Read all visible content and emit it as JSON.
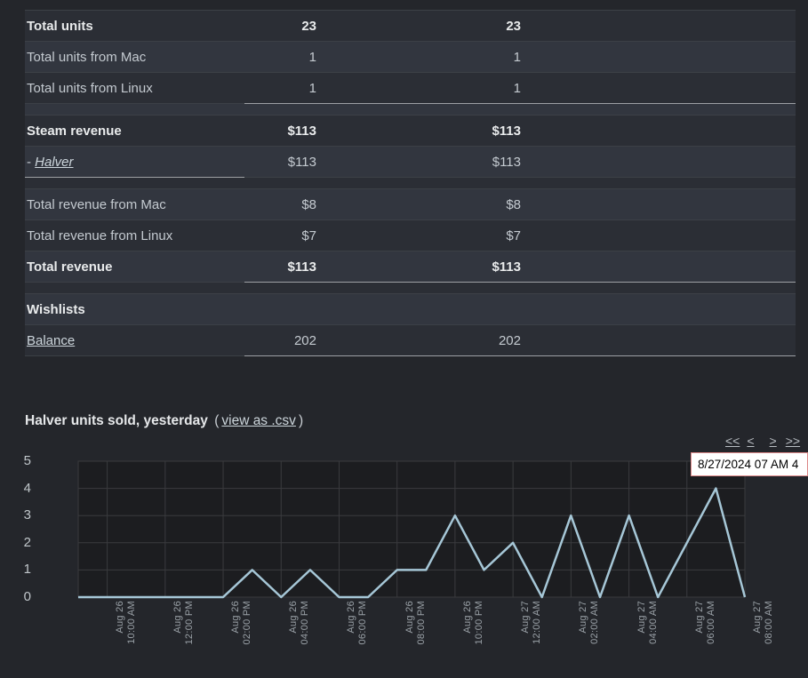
{
  "table": {
    "sections": [
      {
        "rows": [
          {
            "label": "Total units",
            "values": [
              "23",
              "23"
            ],
            "bold": true
          },
          {
            "label": "Total units from Mac",
            "values": [
              "1",
              "1"
            ]
          },
          {
            "label": "Total units from Linux",
            "values": [
              "1",
              "1"
            ],
            "rule": "values"
          }
        ]
      },
      {
        "rows": [
          {
            "label": "Steam revenue",
            "values": [
              "$113",
              "$113"
            ],
            "bold": true
          },
          {
            "label": "Halver",
            "label_prefix": "- ",
            "values": [
              "$113",
              "$113"
            ],
            "link": true,
            "italic": true,
            "rule": "label"
          }
        ]
      },
      {
        "rows": [
          {
            "label": "Total revenue from Mac",
            "values": [
              "$8",
              "$8"
            ]
          },
          {
            "label": "Total revenue from Linux",
            "values": [
              "$7",
              "$7"
            ]
          },
          {
            "label": "Total revenue",
            "values": [
              "$113",
              "$113"
            ],
            "bold": true,
            "rule": "values"
          }
        ]
      },
      {
        "rows": [
          {
            "label": "Wishlists",
            "values": [
              "",
              ""
            ],
            "bold": true
          },
          {
            "label": "Balance",
            "values": [
              "202",
              "202"
            ],
            "link": true,
            "rule": "values"
          }
        ]
      }
    ]
  },
  "chart": {
    "title": "Halver units sold, yesterday",
    "open_paren": "(",
    "csv_label": "view as .csv",
    "close_paren": ")"
  },
  "pagination": {
    "first": "<<",
    "prev": "<",
    "next": ">",
    "last": ">>"
  },
  "tooltip": {
    "text": "8/27/2024 07 AM 4"
  },
  "chart_data": {
    "type": "line",
    "title": "Halver units sold, yesterday",
    "series_name": "Halver units sold",
    "x_times": [
      "8/26 09 AM",
      "8/26 10 AM",
      "8/26 11 AM",
      "8/26 12 PM",
      "8/26 01 PM",
      "8/26 02 PM",
      "8/26 03 PM",
      "8/26 04 PM",
      "8/26 05 PM",
      "8/26 06 PM",
      "8/26 07 PM",
      "8/26 08 PM",
      "8/26 09 PM",
      "8/26 10 PM",
      "8/26 11 PM",
      "8/27 12 AM",
      "8/27 01 AM",
      "8/27 02 AM",
      "8/27 03 AM",
      "8/27 04 AM",
      "8/27 05 AM",
      "8/27 06 AM",
      "8/27 07 AM",
      "8/27 08 AM"
    ],
    "values": [
      0,
      0,
      0,
      0,
      0,
      0,
      1,
      0,
      1,
      0,
      0,
      1,
      1,
      3,
      1,
      2,
      0,
      3,
      0,
      3,
      0,
      2,
      4,
      0
    ],
    "y_ticks": [
      0,
      1,
      2,
      3,
      4,
      5
    ],
    "ylim": [
      0,
      5
    ],
    "x_tick_labels": [
      {
        "date": "Aug 26",
        "time": "10:00 AM"
      },
      {
        "date": "Aug 26",
        "time": "12:00 PM"
      },
      {
        "date": "Aug 26",
        "time": "02:00 PM"
      },
      {
        "date": "Aug 26",
        "time": "04:00 PM"
      },
      {
        "date": "Aug 26",
        "time": "06:00 PM"
      },
      {
        "date": "Aug 26",
        "time": "08:00 PM"
      },
      {
        "date": "Aug 26",
        "time": "10:00 PM"
      },
      {
        "date": "Aug 27",
        "time": "12:00 AM"
      },
      {
        "date": "Aug 27",
        "time": "02:00 AM"
      },
      {
        "date": "Aug 27",
        "time": "04:00 AM"
      },
      {
        "date": "Aug 27",
        "time": "06:00 AM"
      },
      {
        "date": "Aug 27",
        "time": "08:00 AM"
      }
    ],
    "grid": true,
    "legend": "none",
    "line_color": "#a6c7d7",
    "plot_bg": "#1c1d20",
    "grid_color": "#3a3b3e",
    "tooltip_border_color": "#dd8888",
    "highlighted_point": {
      "time": "8/27/2024 07 AM",
      "value": 4
    }
  }
}
